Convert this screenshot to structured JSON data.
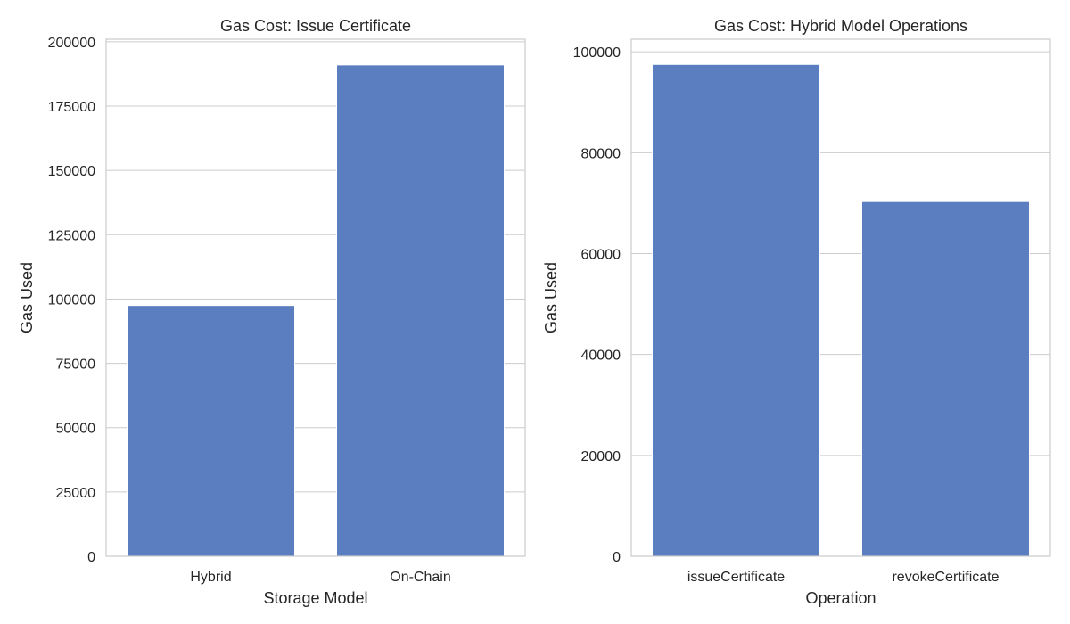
{
  "colors": {
    "bar": "#5b7ec0",
    "grid": "#cccccc",
    "frame": "#cccccc",
    "text": "#262626"
  },
  "chart_data": [
    {
      "type": "bar",
      "title": "Gas Cost: Issue Certificate",
      "xlabel": "Storage Model",
      "ylabel": "Gas Used",
      "categories": [
        "Hybrid",
        "On-Chain"
      ],
      "values": [
        97500,
        191000
      ],
      "ylim": [
        0,
        201000
      ],
      "yticks": [
        0,
        25000,
        50000,
        75000,
        100000,
        125000,
        150000,
        175000,
        200000
      ],
      "ytick_labels": [
        "0",
        "25000",
        "50000",
        "75000",
        "100000",
        "125000",
        "150000",
        "175000",
        "200000"
      ],
      "grid": true
    },
    {
      "type": "bar",
      "title": "Gas Cost: Hybrid Model Operations",
      "xlabel": "Operation",
      "ylabel": "Gas Used",
      "categories": [
        "issueCertificate",
        "revokeCertificate"
      ],
      "values": [
        97500,
        70300
      ],
      "ylim": [
        0,
        102500
      ],
      "yticks": [
        0,
        20000,
        40000,
        60000,
        80000,
        100000
      ],
      "ytick_labels": [
        "0",
        "20000",
        "40000",
        "60000",
        "80000",
        "100000"
      ],
      "grid": true
    }
  ]
}
